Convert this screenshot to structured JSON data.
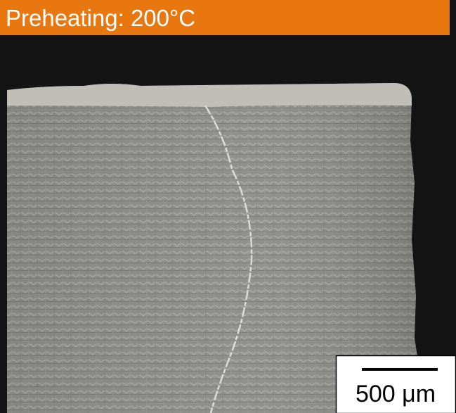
{
  "label": "Preheating: 200°C",
  "scale_bar": {
    "label": "500 μm"
  }
}
